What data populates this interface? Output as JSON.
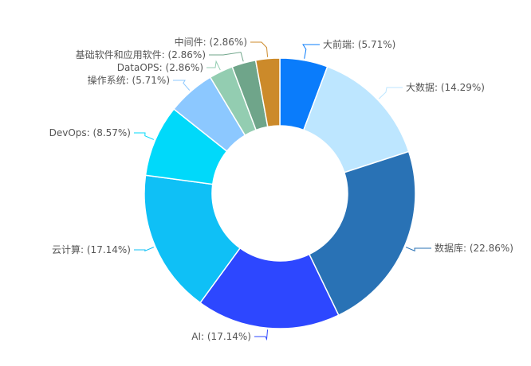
{
  "chart_data": {
    "type": "pie",
    "variant": "donut",
    "title": "",
    "slices": [
      {
        "label": "大前端",
        "percent_text": "5.71%",
        "value": 5.71,
        "color": "#0A7CFB"
      },
      {
        "label": "大数据",
        "percent_text": "14.29%",
        "value": 14.29,
        "color": "#BDE6FF"
      },
      {
        "label": "数据库",
        "percent_text": "22.86%",
        "value": 22.86,
        "color": "#2972B5"
      },
      {
        "label": "AI",
        "percent_text": "17.14%",
        "value": 17.14,
        "color": "#2D47FF"
      },
      {
        "label": "云计算",
        "percent_text": "17.14%",
        "value": 17.14,
        "color": "#0FC0F6"
      },
      {
        "label": "DevOps",
        "percent_text": "8.57%",
        "value": 8.57,
        "color": "#00D9FA"
      },
      {
        "label": "操作系统",
        "percent_text": "5.71%",
        "value": 5.71,
        "color": "#8CC8FF"
      },
      {
        "label": "DataOPS",
        "percent_text": "2.86%",
        "value": 2.86,
        "color": "#93CDB1"
      },
      {
        "label": "基础软件和应用软件",
        "percent_text": "2.86%",
        "value": 2.86,
        "color": "#6FA58A"
      },
      {
        "label": "中间件",
        "percent_text": "2.86%",
        "value": 2.86,
        "color": "#CC8A2A"
      }
    ]
  }
}
